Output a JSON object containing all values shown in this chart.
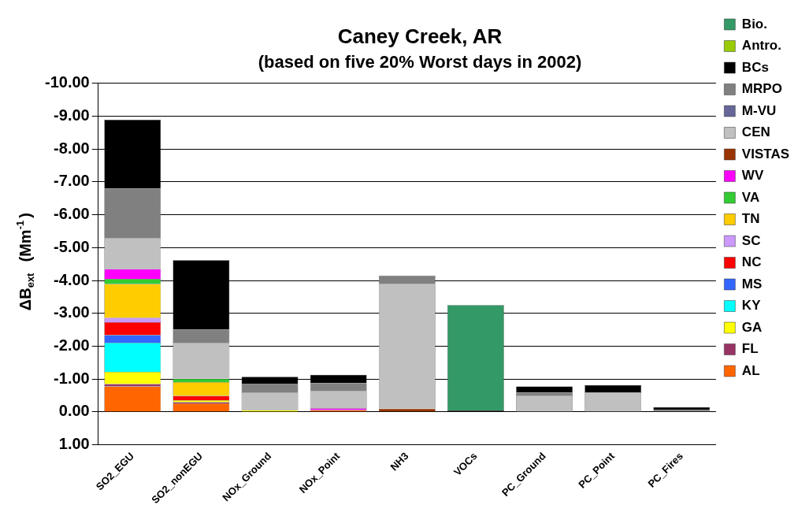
{
  "chart_data": {
    "type": "bar",
    "stacked": true,
    "title": "Caney Creek, AR",
    "subtitle": "(based on five 20% Worst days in 2002)",
    "ylabel": "ΔB$_{ext}$  (Mm$^{-1}$)",
    "categories": [
      "SO2_EGU",
      "SO2_nonEGU",
      "NOx_Ground",
      "NOx_Point",
      "NH3",
      "VOCs",
      "PC_Ground",
      "PC_Point",
      "PC_Fires"
    ],
    "ylim": [
      1,
      -10
    ],
    "yticks": [
      {
        "value": -10,
        "label": "-10.00"
      },
      {
        "value": -9,
        "label": "-9.00"
      },
      {
        "value": -8,
        "label": "-8.00"
      },
      {
        "value": -7,
        "label": "-7.00"
      },
      {
        "value": -6,
        "label": "-6.00"
      },
      {
        "value": -5,
        "label": "-5.00"
      },
      {
        "value": -4,
        "label": "-4.00"
      },
      {
        "value": -3,
        "label": "-3.00"
      },
      {
        "value": -2,
        "label": "-2.00"
      },
      {
        "value": -1,
        "label": "-1.00"
      },
      {
        "value": 0,
        "label": "0.00"
      },
      {
        "value": 1,
        "label": "1.00"
      }
    ],
    "grid": "y",
    "legend": "right",
    "series": [
      {
        "name": "AL",
        "color": "#ff6600",
        "values": [
          -0.78,
          -0.26,
          null,
          -0.06,
          null,
          null,
          null,
          null,
          null
        ]
      },
      {
        "name": "FL",
        "color": "#993366",
        "values": [
          -0.07,
          -0.04,
          null,
          null,
          null,
          null,
          null,
          null,
          null
        ]
      },
      {
        "name": "GA",
        "color": "#ffff00",
        "values": [
          -0.37,
          -0.06,
          -0.06,
          null,
          null,
          null,
          null,
          null,
          null
        ]
      },
      {
        "name": "KY",
        "color": "#00ffff",
        "values": [
          -0.89,
          null,
          null,
          null,
          null,
          null,
          null,
          null,
          null
        ]
      },
      {
        "name": "MS",
        "color": "#3366ff",
        "values": [
          -0.23,
          null,
          null,
          null,
          null,
          null,
          null,
          null,
          null
        ]
      },
      {
        "name": "NC",
        "color": "#ff0000",
        "values": [
          -0.39,
          -0.13,
          null,
          null,
          null,
          null,
          null,
          null,
          null
        ]
      },
      {
        "name": "SC",
        "color": "#cc99ff",
        "values": [
          -0.13,
          null,
          null,
          null,
          null,
          null,
          null,
          null,
          null
        ]
      },
      {
        "name": "TN",
        "color": "#ffcc00",
        "values": [
          -1.03,
          -0.42,
          null,
          null,
          null,
          null,
          null,
          null,
          null
        ]
      },
      {
        "name": "VA",
        "color": "#33cc33",
        "values": [
          -0.16,
          -0.1,
          null,
          null,
          null,
          null,
          null,
          null,
          null
        ]
      },
      {
        "name": "WV",
        "color": "#ff00ff",
        "values": [
          -0.3,
          null,
          null,
          -0.05,
          null,
          null,
          null,
          null,
          null
        ]
      },
      {
        "name": "VISTAS",
        "color": "#993300",
        "values": [
          null,
          null,
          null,
          null,
          -0.1,
          null,
          null,
          null,
          null
        ]
      },
      {
        "name": "CEN",
        "color": "#c0c0c0",
        "values": [
          -0.94,
          -1.1,
          -0.54,
          -0.52,
          -3.8,
          null,
          -0.5,
          -0.6,
          null
        ]
      },
      {
        "name": "M-VU",
        "color": "#666699",
        "values": [
          null,
          null,
          null,
          null,
          null,
          null,
          null,
          null,
          null
        ]
      },
      {
        "name": "MRPO",
        "color": "#808080",
        "values": [
          -1.5,
          -0.39,
          -0.26,
          -0.25,
          -0.25,
          null,
          -0.09,
          null,
          -0.06
        ]
      },
      {
        "name": "BCs",
        "color": "#000000",
        "values": [
          -2.1,
          -2.12,
          -0.21,
          -0.25,
          null,
          -0.05,
          -0.19,
          -0.22,
          -0.09
        ]
      },
      {
        "name": "Antro.",
        "color": "#99cc00",
        "values": [
          null,
          null,
          null,
          null,
          null,
          null,
          null,
          null,
          null
        ]
      },
      {
        "name": "Bio.",
        "color": "#339966",
        "values": [
          null,
          null,
          null,
          null,
          null,
          -3.2,
          null,
          null,
          null
        ]
      }
    ]
  }
}
